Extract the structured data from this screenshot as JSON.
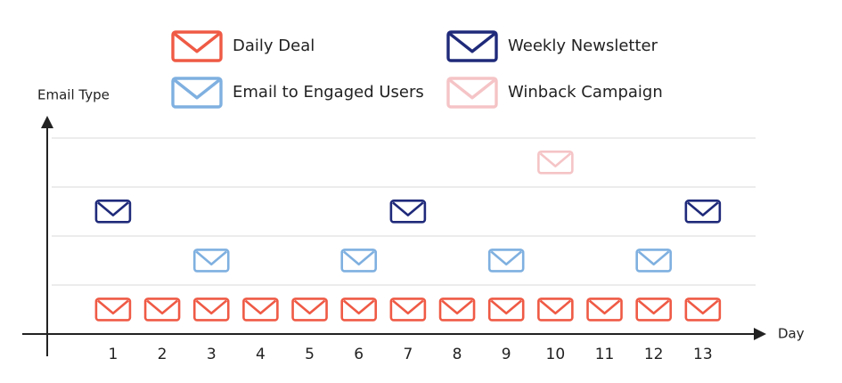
{
  "chart_data": {
    "type": "scatter",
    "x_label": "Day",
    "y_label": "Email Type",
    "xlim": [
      -0.34,
      14.29
    ],
    "xticks": [
      1,
      2,
      3,
      4,
      5,
      6,
      7,
      8,
      9,
      10,
      11,
      12,
      13
    ],
    "ylim": [
      0.5,
      4.95
    ],
    "grid": true,
    "series": [
      {
        "name": "Daily Deal",
        "color": "#ef5a45",
        "x": [
          1,
          2,
          3,
          4,
          5,
          6,
          7,
          8,
          9,
          10,
          11,
          12,
          13
        ],
        "y": [
          1,
          1,
          1,
          1,
          1,
          1,
          1,
          1,
          1,
          1,
          1,
          1,
          1
        ]
      },
      {
        "name": "Weekly Newsletter",
        "color": "#1f2a7a",
        "x": [
          1,
          7,
          13
        ],
        "y": [
          3,
          3,
          3
        ]
      },
      {
        "name": "Email to Engaged Users",
        "color": "#7fb0e0",
        "x": [
          3,
          6,
          9,
          12
        ],
        "y": [
          2,
          2,
          2,
          2
        ]
      },
      {
        "name": "Winback Campaign",
        "color": "#f5c4c6",
        "x": [
          10
        ],
        "y": [
          4
        ]
      }
    ]
  }
}
